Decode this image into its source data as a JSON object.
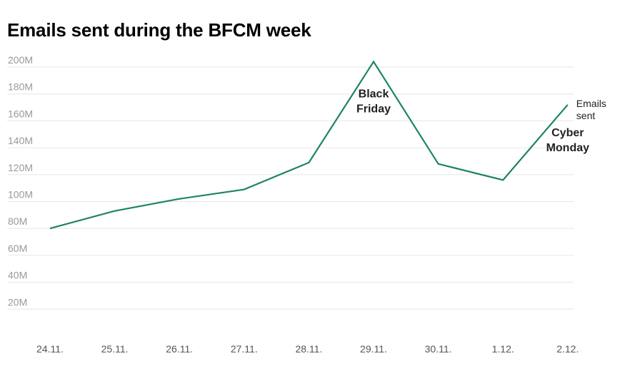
{
  "chart_data": {
    "type": "line",
    "title": "Emails sent during the BFCM week",
    "xlabel": "",
    "ylabel": "",
    "categories": [
      "24.11.",
      "25.11.",
      "26.11.",
      "27.11.",
      "28.11.",
      "29.11.",
      "30.11.",
      "1.12.",
      "2.12."
    ],
    "series": [
      {
        "name": "Emails sent",
        "values": [
          80,
          93,
          102,
          109,
          129,
          204,
          128,
          116,
          172
        ]
      }
    ],
    "yticks": [
      {
        "value": 20,
        "label": "20M"
      },
      {
        "value": 40,
        "label": "40M"
      },
      {
        "value": 60,
        "label": "60M"
      },
      {
        "value": 80,
        "label": "80M"
      },
      {
        "value": 100,
        "label": "100M"
      },
      {
        "value": 120,
        "label": "120M"
      },
      {
        "value": 140,
        "label": "140M"
      },
      {
        "value": 160,
        "label": "160M"
      },
      {
        "value": 180,
        "label": "180M"
      },
      {
        "value": 200,
        "label": "200M"
      }
    ],
    "ylim": [
      0,
      200
    ],
    "grid": true,
    "line_color": "#1e8463",
    "grid_color": "#e6e6e6",
    "annotations": [
      {
        "category": "29.11.",
        "lines": [
          "Black",
          "Friday"
        ]
      },
      {
        "category": "2.12.",
        "lines": [
          "Cyber",
          "Monday"
        ]
      }
    ]
  }
}
